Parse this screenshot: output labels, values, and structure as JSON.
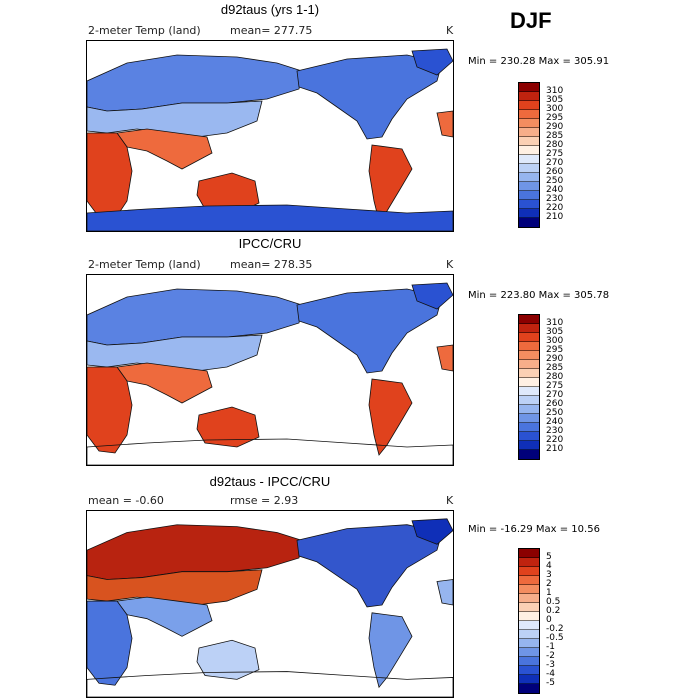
{
  "season": "DJF",
  "panels": [
    {
      "title": "d92taus (yrs 1-1)",
      "variable": "2-meter Temp (land)",
      "stat": "mean=  277.75",
      "unit": "K",
      "minmax": "Min = 230.28  Max = 305.91",
      "scale": "abs",
      "antarctica": true,
      "colorbar": {
        "labels": [
          "310",
          "305",
          "300",
          "295",
          "290",
          "285",
          "280",
          "275",
          "270",
          "260",
          "250",
          "240",
          "230",
          "220",
          "210"
        ],
        "colors": [
          "#8b0000",
          "#c0230f",
          "#e0421d",
          "#ee6a3d",
          "#f48d60",
          "#f7ae8a",
          "#fbd0b4",
          "#fff0e3",
          "#dfe9fb",
          "#bcd1f6",
          "#96b5ef",
          "#6f95e6",
          "#4a74dd",
          "#2a52d2",
          "#0f2fb8",
          "#00007a"
        ]
      }
    },
    {
      "title": "IPCC/CRU",
      "variable": "2-meter Temp (land)",
      "stat": "mean=  278.35",
      "unit": "K",
      "minmax": "Min = 223.80  Max = 305.78",
      "scale": "abs",
      "antarctica": false,
      "colorbar": {
        "labels": [
          "310",
          "305",
          "300",
          "295",
          "290",
          "285",
          "280",
          "275",
          "270",
          "260",
          "250",
          "240",
          "230",
          "220",
          "210"
        ],
        "colors": [
          "#8b0000",
          "#c0230f",
          "#e0421d",
          "#ee6a3d",
          "#f48d60",
          "#f7ae8a",
          "#fbd0b4",
          "#fff0e3",
          "#dfe9fb",
          "#bcd1f6",
          "#96b5ef",
          "#6f95e6",
          "#4a74dd",
          "#2a52d2",
          "#0f2fb8",
          "#00007a"
        ]
      }
    },
    {
      "title": "d92taus - IPCC/CRU",
      "stat": "mean =   -0.60",
      "stat2": "rmse =    2.93",
      "unit": "K",
      "minmax": "Min = -16.29  Max =  10.56",
      "scale": "diff",
      "antarctica": false,
      "colorbar": {
        "labels": [
          "5",
          "4",
          "3",
          "2",
          "1",
          "0.5",
          "0.2",
          "0",
          "-0.2",
          "-0.5",
          "-1",
          "-2",
          "-3",
          "-4",
          "-5"
        ],
        "colors": [
          "#8b0000",
          "#c0230f",
          "#e0421d",
          "#ee6a3d",
          "#f48d60",
          "#f7ae8a",
          "#fbd0b4",
          "#fff0e3",
          "#dfe9fb",
          "#bcd1f6",
          "#96b5ef",
          "#6f95e6",
          "#4a74dd",
          "#2a52d2",
          "#0f2fb8",
          "#00007a"
        ]
      }
    }
  ]
}
